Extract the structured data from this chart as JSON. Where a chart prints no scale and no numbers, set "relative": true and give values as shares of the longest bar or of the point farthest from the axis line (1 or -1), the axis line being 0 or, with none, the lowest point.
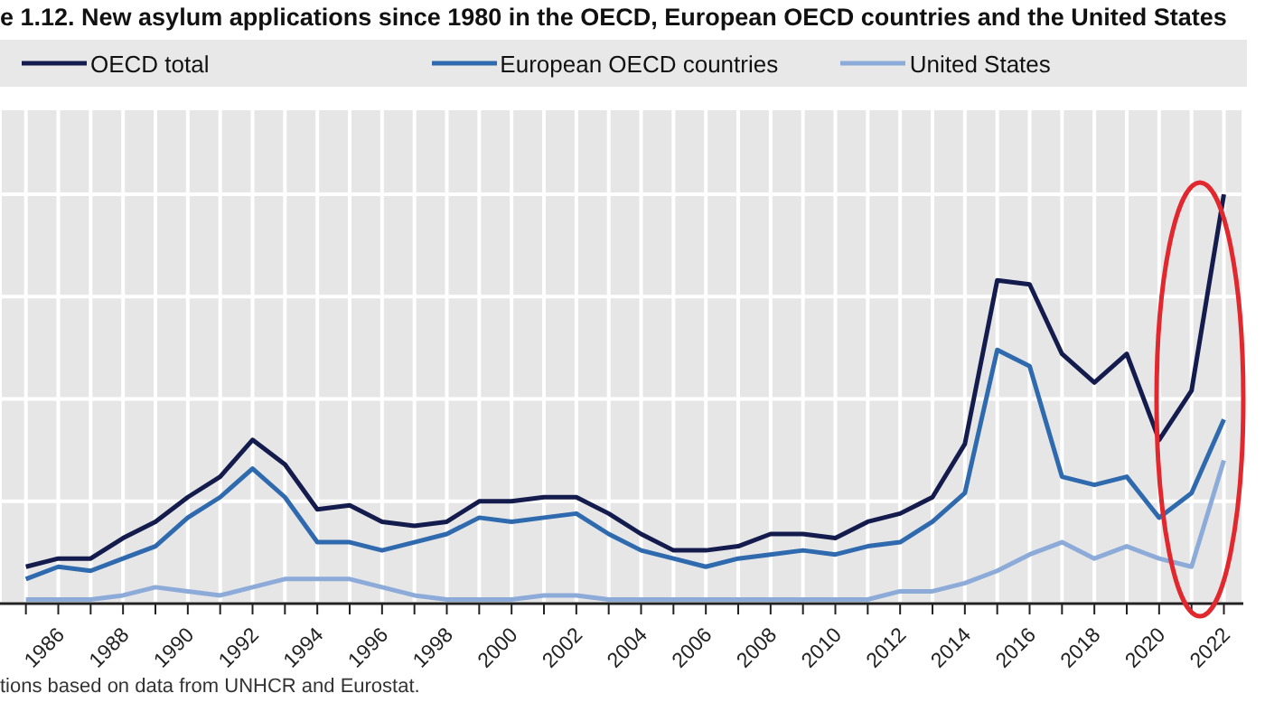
{
  "chart_data": {
    "type": "line",
    "title": "e 1.12. New asylum applications since 1980 in the OECD, European OECD countries and the United States",
    "relative": true,
    "legend": "top",
    "grid": true,
    "marker": "none",
    "line_style": "solid",
    "x": [
      1985,
      1986,
      1987,
      1988,
      1989,
      1990,
      1991,
      1992,
      1993,
      1994,
      1995,
      1996,
      1997,
      1998,
      1999,
      2000,
      2001,
      2002,
      2003,
      2004,
      2005,
      2006,
      2007,
      2008,
      2009,
      2010,
      2011,
      2012,
      2013,
      2014,
      2015,
      2016,
      2017,
      2018,
      2019,
      2020,
      2021,
      2022
    ],
    "xlim": [
      1984.2,
      2022.6
    ],
    "xticks": [
      {
        "value": 1985,
        "label": null
      },
      1986,
      {
        "value": 1987,
        "label": null
      },
      1988,
      {
        "value": 1989,
        "label": null
      },
      1990,
      {
        "value": 1991,
        "label": null
      },
      1992,
      {
        "value": 1993,
        "label": null
      },
      1994,
      {
        "value": 1995,
        "label": null
      },
      1996,
      {
        "value": 1997,
        "label": null
      },
      1998,
      {
        "value": 1999,
        "label": null
      },
      2000,
      {
        "value": 2001,
        "label": null
      },
      2002,
      {
        "value": 2003,
        "label": null
      },
      2004,
      {
        "value": 2005,
        "label": null
      },
      2006,
      {
        "value": 2007,
        "label": null
      },
      2008,
      {
        "value": 2009,
        "label": null
      },
      2010,
      {
        "value": 2011,
        "label": null
      },
      2012,
      {
        "value": 2013,
        "label": null
      },
      2014,
      {
        "value": 2015,
        "label": null
      },
      2016,
      {
        "value": 2017,
        "label": null
      },
      2018,
      {
        "value": 2019,
        "label": null
      },
      2020,
      {
        "value": 2021,
        "label": null
      },
      2022
    ],
    "series": [
      {
        "name": "OECD total",
        "color": "#141c4d",
        "values": [
          0.09,
          0.11,
          0.11,
          0.16,
          0.2,
          0.26,
          0.31,
          0.4,
          0.34,
          0.23,
          0.24,
          0.2,
          0.19,
          0.2,
          0.25,
          0.25,
          0.26,
          0.26,
          0.22,
          0.17,
          0.13,
          0.13,
          0.14,
          0.17,
          0.17,
          0.16,
          0.2,
          0.22,
          0.26,
          0.39,
          0.79,
          0.78,
          0.61,
          0.54,
          0.61,
          0.4,
          0.52,
          1.0
        ]
      },
      {
        "name": "European OECD countries",
        "color": "#2e6aad",
        "values": [
          0.06,
          0.09,
          0.08,
          0.11,
          0.14,
          0.21,
          0.26,
          0.33,
          0.26,
          0.15,
          0.15,
          0.13,
          0.15,
          0.17,
          0.21,
          0.2,
          0.21,
          0.22,
          0.17,
          0.13,
          0.11,
          0.09,
          0.11,
          0.12,
          0.13,
          0.12,
          0.14,
          0.15,
          0.2,
          0.27,
          0.62,
          0.58,
          0.31,
          0.29,
          0.31,
          0.21,
          0.27,
          0.45
        ]
      },
      {
        "name": "United States",
        "color": "#8cabd9",
        "values": [
          0.01,
          0.01,
          0.01,
          0.02,
          0.04,
          0.03,
          0.02,
          0.04,
          0.06,
          0.06,
          0.06,
          0.04,
          0.02,
          0.01,
          0.01,
          0.01,
          0.02,
          0.02,
          0.01,
          0.01,
          0.01,
          0.01,
          0.01,
          0.01,
          0.01,
          0.01,
          0.01,
          0.03,
          0.03,
          0.05,
          0.08,
          0.12,
          0.15,
          0.11,
          0.14,
          0.11,
          0.09,
          0.35
        ]
      }
    ],
    "annotations": [
      "tions based on data from UNHCR and Eurostat."
    ]
  }
}
